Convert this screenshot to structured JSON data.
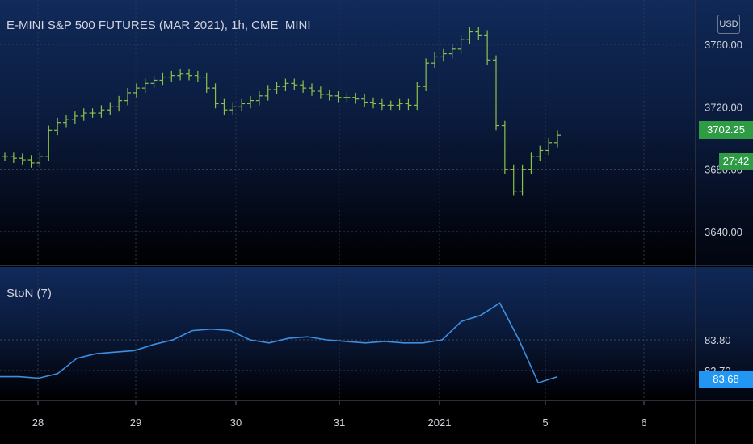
{
  "header": {
    "title": "E-MINI S&P 500 FUTURES (MAR 2021), 1h, CME_MINI",
    "currency_button": "USD"
  },
  "indicator": {
    "label": "StoN (7)"
  },
  "price_axis": {
    "ticks": [
      "3760.00",
      "3720.00",
      "3680.00",
      "3640.00"
    ],
    "last_price_tag": "3702.25",
    "countdown_tag": "27:42"
  },
  "indicator_axis": {
    "ticks": [
      "83.80",
      "83.70"
    ],
    "current_value_tag": "83.68"
  },
  "time_axis": {
    "ticks": [
      "28",
      "29",
      "30",
      "31",
      "2021",
      "5",
      "6"
    ]
  },
  "colors": {
    "bar_up": "#4caf50",
    "bar_color": "#8bc34a",
    "indicator_line": "#3d8fe0",
    "last_price_bg": "#2e9b45",
    "indicator_tag_bg": "#2196f3"
  },
  "chart_data": [
    {
      "type": "line",
      "title": "E-MINI S&P 500 FUTURES (MAR 2021), 1h, CME_MINI",
      "xlabel": "",
      "ylabel": "",
      "ylim": [
        3630,
        3775
      ],
      "x_ticks": [
        "28",
        "29",
        "30",
        "31",
        "2021",
        "5",
        "6"
      ],
      "series": [
        {
          "name": "",
          "values": [
            3688,
            3687,
            3686,
            3684,
            3688,
            3705,
            3710,
            3712,
            3714,
            3716,
            3716,
            3718,
            3720,
            3724,
            3729,
            3732,
            3735,
            3737,
            3739,
            3740,
            3741,
            3740,
            3739,
            3732,
            3722,
            3718,
            3720,
            3722,
            3724,
            3727,
            3731,
            3733,
            3735,
            3734,
            3732,
            3730,
            3728,
            3727,
            3726,
            3726,
            3725,
            3723,
            3722,
            3721,
            3721,
            3722,
            3721,
            3733,
            3748,
            3752,
            3754,
            3757,
            3763,
            3768,
            3766,
            3750,
            3708,
            3680,
            3666,
            3680,
            3688,
            3692,
            3697,
            3702
          ]
        }
      ]
    },
    {
      "type": "line",
      "title": "StoN (7)",
      "xlabel": "",
      "ylabel": "",
      "ylim": [
        83.6,
        83.93
      ],
      "x_ticks": [
        "28",
        "29",
        "30",
        "31",
        "2021",
        "5",
        "6"
      ],
      "series": [
        {
          "name": "",
          "values": [
            83.68,
            83.68,
            83.675,
            83.69,
            83.74,
            83.755,
            83.76,
            83.765,
            83.785,
            83.8,
            83.83,
            83.835,
            83.83,
            83.8,
            83.79,
            83.805,
            83.81,
            83.8,
            83.795,
            83.79,
            83.795,
            83.79,
            83.79,
            83.8,
            83.86,
            83.88,
            83.92,
            83.8,
            83.66,
            83.68
          ]
        }
      ]
    }
  ]
}
